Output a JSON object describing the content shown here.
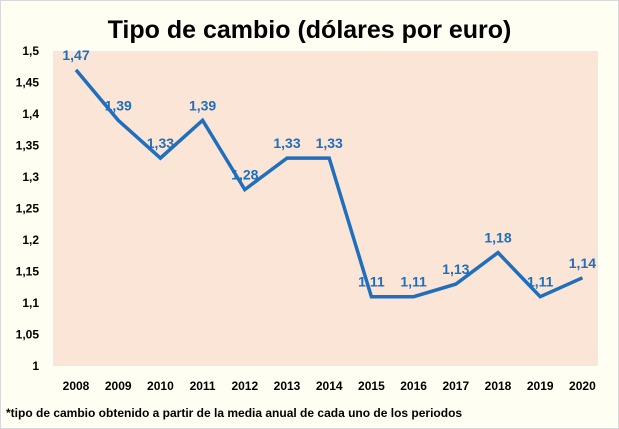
{
  "colors": {
    "plot_bg": "#fbe5d6",
    "line": "#1f6fbd",
    "label": "#1f6fbd",
    "axis_text": "#000000"
  },
  "chart_data": {
    "type": "line",
    "title": "Tipo de cambio (dólares por euro)",
    "categories": [
      "2008",
      "2009",
      "2010",
      "2011",
      "2012",
      "2013",
      "2014",
      "2015",
      "2016",
      "2017",
      "2018",
      "2019",
      "2020"
    ],
    "series": [
      {
        "values": [
          1.47,
          1.39,
          1.33,
          1.39,
          1.28,
          1.33,
          1.33,
          1.11,
          1.11,
          1.13,
          1.18,
          1.11,
          1.14
        ]
      }
    ],
    "data_labels": [
      "1,47",
      "1,39",
      "1,33",
      "1,39",
      "1,28",
      "1,33",
      "1,33",
      "1,11",
      "1,11",
      "1,13",
      "1,18",
      "1,11",
      "1,14"
    ],
    "ylim": [
      1,
      1.5
    ],
    "yticks": [
      1,
      1.05,
      1.1,
      1.15,
      1.2,
      1.25,
      1.3,
      1.35,
      1.4,
      1.45,
      1.5
    ],
    "ytick_labels": [
      "1",
      "1,05",
      "1,1",
      "1,15",
      "1,2",
      "1,25",
      "1,3",
      "1,35",
      "1,4",
      "1,45",
      "1,5"
    ],
    "grid": false,
    "xlabel": "",
    "ylabel": ""
  },
  "footnote": "*tipo de cambio obtenido a partir de la media anual de cada uno de los periodos"
}
